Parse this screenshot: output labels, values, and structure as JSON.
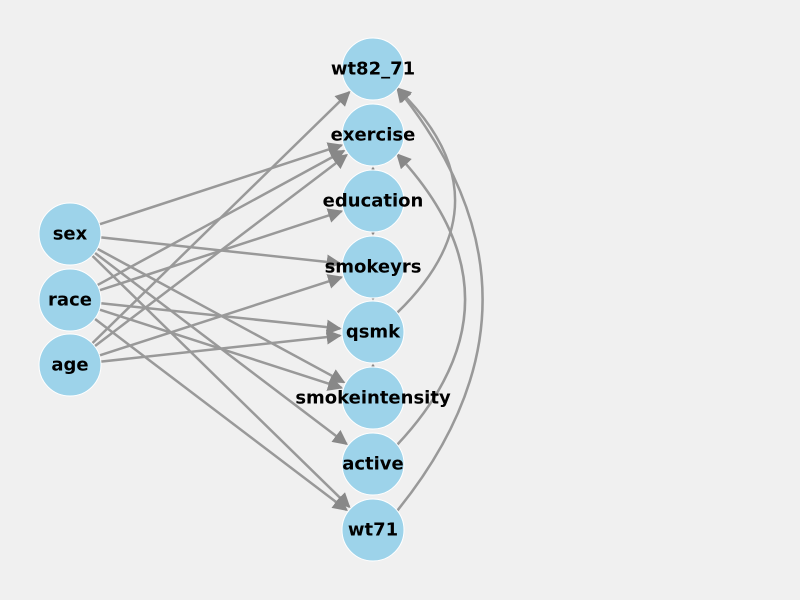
{
  "graph": {
    "colors": {
      "background": "#f0f0f0",
      "node": "#9dd3ea",
      "edge": "#999999",
      "arrowhead": "#888888",
      "label": "#000000"
    },
    "nodes": [
      {
        "id": "sex",
        "label": "sex"
      },
      {
        "id": "race",
        "label": "race"
      },
      {
        "id": "age",
        "label": "age"
      },
      {
        "id": "wt82_71",
        "label": "wt82_71"
      },
      {
        "id": "exercise",
        "label": "exercise"
      },
      {
        "id": "education",
        "label": "education"
      },
      {
        "id": "smokeyrs",
        "label": "smokeyrs"
      },
      {
        "id": "qsmk",
        "label": "qsmk"
      },
      {
        "id": "smokeintensity",
        "label": "smokeintensity"
      },
      {
        "id": "active",
        "label": "active"
      },
      {
        "id": "wt71",
        "label": "wt71"
      }
    ],
    "edges": [
      {
        "from": "sex",
        "to": "exercise"
      },
      {
        "from": "sex",
        "to": "smokeyrs"
      },
      {
        "from": "sex",
        "to": "smokeintensity"
      },
      {
        "from": "sex",
        "to": "active"
      },
      {
        "from": "sex",
        "to": "wt71"
      },
      {
        "from": "race",
        "to": "exercise"
      },
      {
        "from": "race",
        "to": "education"
      },
      {
        "from": "race",
        "to": "qsmk"
      },
      {
        "from": "race",
        "to": "smokeintensity"
      },
      {
        "from": "race",
        "to": "wt71"
      },
      {
        "from": "age",
        "to": "wt82_71"
      },
      {
        "from": "age",
        "to": "exercise"
      },
      {
        "from": "age",
        "to": "smokeyrs"
      },
      {
        "from": "age",
        "to": "qsmk"
      },
      {
        "from": "education",
        "to": "exercise"
      },
      {
        "from": "education",
        "to": "smokeyrs"
      },
      {
        "from": "smokeyrs",
        "to": "qsmk"
      },
      {
        "from": "smokeintensity",
        "to": "qsmk"
      },
      {
        "from": "qsmk",
        "to": "wt82_71"
      },
      {
        "from": "active",
        "to": "exercise"
      },
      {
        "from": "wt71",
        "to": "wt82_71"
      }
    ]
  }
}
